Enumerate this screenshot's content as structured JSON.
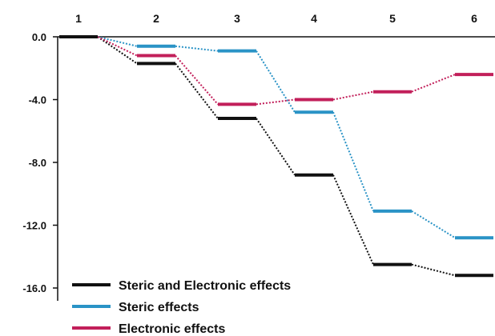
{
  "chart_data": {
    "type": "line",
    "subtype": "energy-level-diagram",
    "title": "",
    "xlabel": "",
    "ylabel": "",
    "categories": [
      "1",
      "2",
      "3",
      "4",
      "5",
      "6"
    ],
    "yticks": [
      "0.0",
      "-4.0",
      "-8.0",
      "-12.0",
      "-16.0"
    ],
    "ylim": [
      -16.0,
      0.0
    ],
    "grid": false,
    "legend_position": "bottom-left",
    "series": [
      {
        "name": "Steric and Electronic effects",
        "color": "#111111",
        "values": [
          0.0,
          -1.7,
          -5.2,
          -8.8,
          -14.5,
          -15.2
        ]
      },
      {
        "name": "Steric effects",
        "color": "#2a93c6",
        "values": [
          0.0,
          -0.6,
          -0.9,
          -4.8,
          -11.1,
          -12.8
        ]
      },
      {
        "name": "Electronic effects",
        "color": "#c21f5a",
        "values": [
          0.0,
          -1.2,
          -4.3,
          -4.0,
          -3.5,
          -2.4
        ]
      }
    ]
  }
}
